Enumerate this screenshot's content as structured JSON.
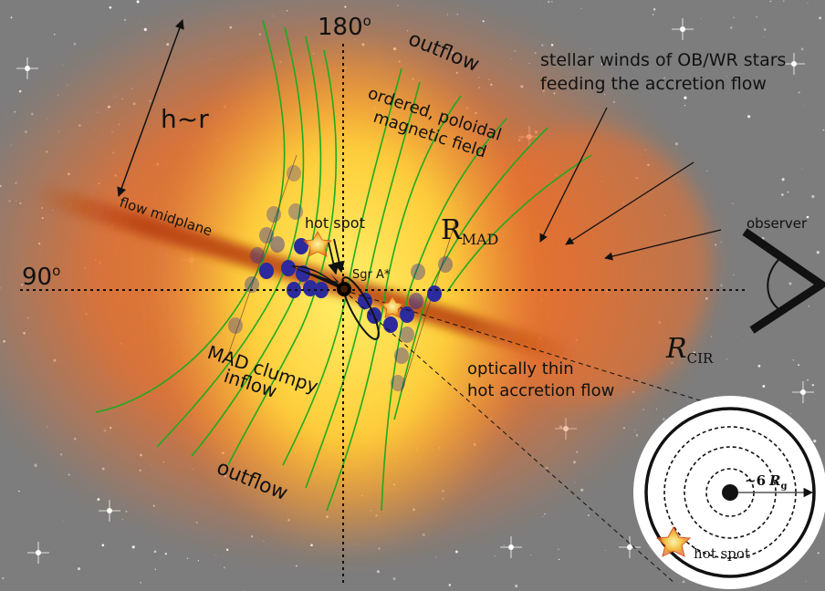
{
  "labels": {
    "angle_top": "180",
    "angle_left": "90",
    "degree": "o",
    "outflow": "outflow",
    "stellar_winds_line1": "stellar winds of OB/WR stars",
    "stellar_winds_line2": "feeding the accretion flow",
    "hr": "h~r",
    "ordered_line1": "ordered, poloidal",
    "ordered_line2": "magnetic field",
    "flow_midplane": "flow midplane",
    "hot_spot": "hot spot",
    "r_symbol": "R",
    "r_mad_sub": "MAD",
    "observer": "observer",
    "sgr": "Sgr A*",
    "r_cir_sub": "CIR",
    "mad_line1": "MAD clumpy",
    "mad_line2": "inflow",
    "optically_line1": "optically thin",
    "optically_line2": "hot accretion flow",
    "inset_radius": "~6",
    "inset_rg": "R",
    "inset_rg_sub": "g",
    "inset_hot_spot": "hot spot"
  },
  "colors": {
    "background": "#7d7d7d",
    "outer_glow": "#e8702e",
    "inner_glow": "#ffd23a",
    "midplane": "#b8400e",
    "field_lines": "#1faa1f",
    "clumps": "#2c2a9c",
    "hot_spot": "#f2b93b",
    "ink": "#111111"
  },
  "icons": {
    "star": "star-icon",
    "observer_eye": "observer-eye-icon",
    "black_hole": "black-hole-icon"
  }
}
